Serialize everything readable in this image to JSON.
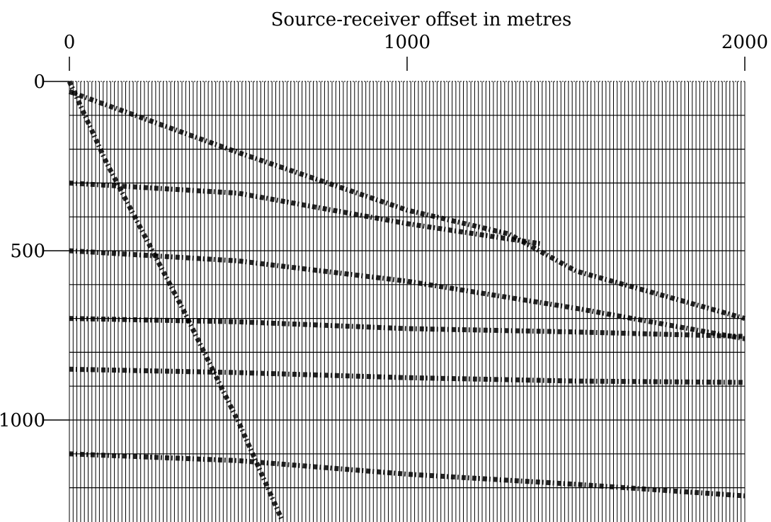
{
  "chart_data": {
    "type": "seismic",
    "x_label": "Source-receiver offset in metres",
    "xlim": [
      0,
      2000
    ],
    "xticks": [
      0,
      1000,
      2000
    ],
    "ylim": [
      0,
      1296
    ],
    "yticks": [
      0,
      500,
      1000
    ],
    "ygrid": [
      100,
      200,
      300,
      400,
      500,
      600,
      700,
      800,
      900,
      1000,
      1100,
      1200
    ],
    "trace_spacing": 11,
    "color": "#000000",
    "series": [
      {
        "x": [
          0,
          500,
          1000,
          1300,
          1500,
          2000
        ],
        "values": [
          30,
          210,
          380,
          450,
          560,
          700
        ]
      },
      {
        "x": [
          0,
          500,
          1000,
          1400
        ],
        "values": [
          300,
          330,
          420,
          480
        ]
      },
      {
        "x": [
          0,
          500,
          1000,
          1500,
          2000
        ],
        "values": [
          500,
          530,
          590,
          670,
          760
        ]
      },
      {
        "x": [
          0,
          500,
          1000,
          1500,
          2000
        ],
        "values": [
          700,
          710,
          730,
          740,
          753
        ]
      },
      {
        "x": [
          0,
          500,
          1000,
          1500,
          2000
        ],
        "values": [
          850,
          860,
          875,
          885,
          889
        ]
      },
      {
        "x": [
          0,
          500,
          1000,
          1500,
          2000
        ],
        "values": [
          1100,
          1120,
          1160,
          1190,
          1224
        ]
      },
      {
        "x": [
          0,
          110,
          340,
          505,
          630
        ],
        "values": [
          0,
          240,
          680,
          1015,
          1296
        ]
      }
    ]
  }
}
